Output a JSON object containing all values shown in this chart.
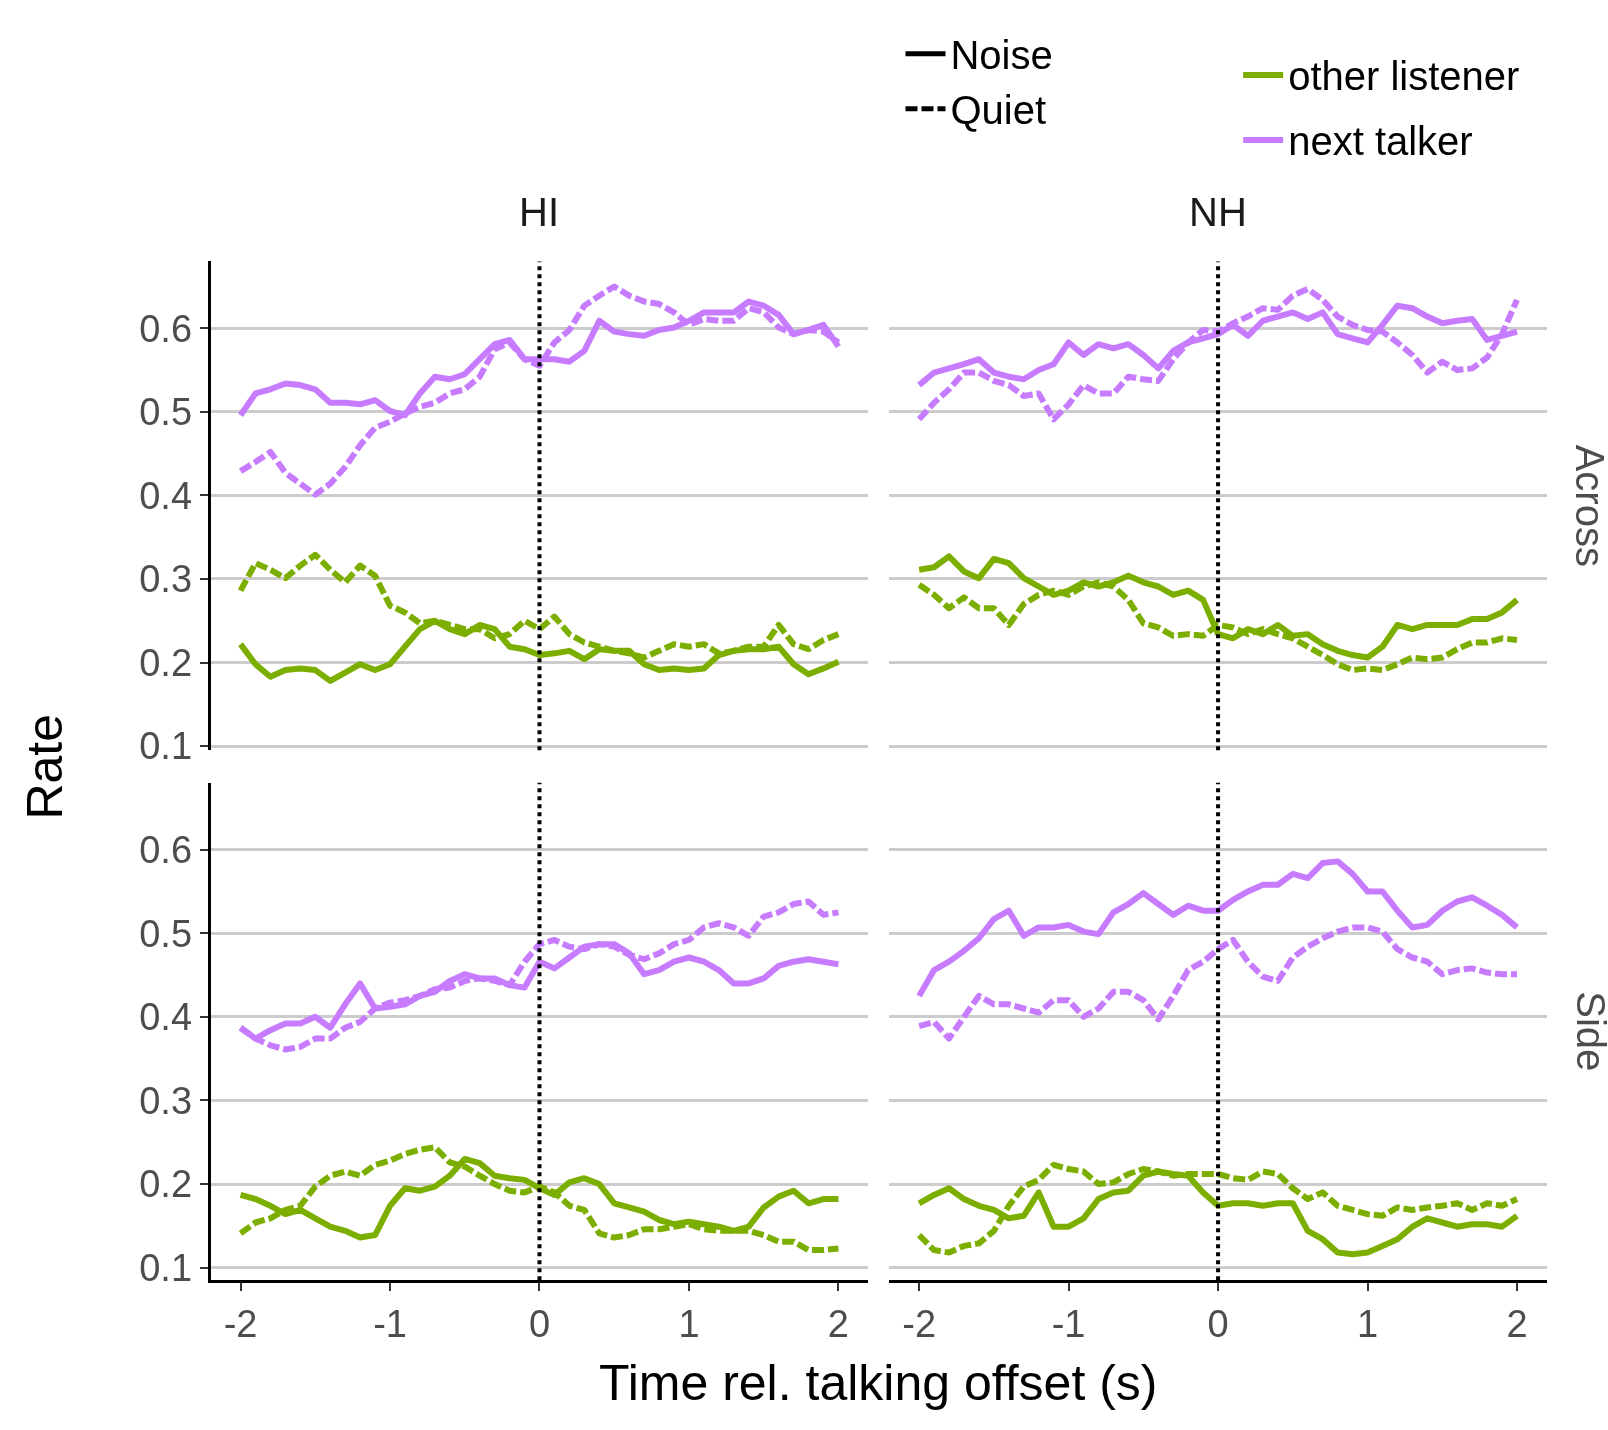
{
  "chart_data": [
    {
      "type": "line",
      "title": "HI",
      "ylabel": "Rate",
      "legend": "top",
      "annotations": [
        "Noise",
        "Quiet"
      ],
      "x": [
        -2,
        -1.9,
        -1.8,
        -1.7,
        -1.6,
        -1.5,
        -1.4,
        -1.3,
        -1.2,
        -1.1,
        -1,
        -0.9,
        -0.8,
        -0.7,
        -0.6,
        -0.5,
        -0.4,
        -0.3,
        -0.2,
        -0.1,
        0,
        0.1,
        0.2,
        0.3,
        0.4,
        0.5,
        0.6,
        0.7,
        0.8,
        0.9,
        1,
        1.1,
        1.2,
        1.3,
        1.4,
        1.5,
        1.6,
        1.7,
        1.8,
        1.9,
        2
      ],
      "xlim": [
        -2.2,
        2.2
      ],
      "xticks": [
        -2,
        -1,
        0,
        1,
        2
      ],
      "ylim": [
        0.095,
        0.68
      ],
      "yticks": [
        0.1,
        0.2,
        0.3,
        0.4,
        0.5,
        0.6
      ],
      "grid": "y",
      "tick_labels": "y",
      "ref_lines": [
        {
          "axis": "x",
          "value": 0,
          "line_style": "dotted",
          "color": "#000000"
        }
      ],
      "series": [
        {
          "name": "other listener",
          "color": "#7cae00",
          "line_style": "solid",
          "values": [
            0.222,
            0.198,
            0.183,
            0.191,
            0.193,
            0.191,
            0.178,
            0.188,
            0.198,
            0.191,
            0.198,
            0.219,
            0.24,
            0.25,
            0.24,
            0.234,
            0.245,
            0.24,
            0.219,
            0.216,
            0.209,
            0.211,
            0.214,
            0.204,
            0.216,
            0.214,
            0.214,
            0.198,
            0.191,
            0.193,
            0.191,
            0.193,
            0.209,
            0.214,
            0.216,
            0.216,
            0.219,
            0.198,
            0.186,
            0.193,
            0.201
          ]
        },
        {
          "color": "#7cae00",
          "line_style": "dashed",
          "values": [
            0.286,
            0.319,
            0.311,
            0.301,
            0.316,
            0.329,
            0.311,
            0.296,
            0.316,
            0.304,
            0.268,
            0.26,
            0.247,
            0.25,
            0.245,
            0.24,
            0.24,
            0.229,
            0.234,
            0.25,
            0.24,
            0.255,
            0.234,
            0.224,
            0.219,
            0.214,
            0.211,
            0.206,
            0.214,
            0.222,
            0.219,
            0.222,
            0.211,
            0.214,
            0.219,
            0.219,
            0.245,
            0.222,
            0.216,
            0.227,
            0.234
          ]
        },
        {
          "name": "next talker",
          "color": "#c77cff",
          "line_style": "solid",
          "values": [
            0.496,
            0.522,
            0.527,
            0.534,
            0.532,
            0.527,
            0.511,
            0.511,
            0.509,
            0.514,
            0.501,
            0.496,
            0.522,
            0.542,
            0.539,
            0.545,
            0.563,
            0.581,
            0.586,
            0.563,
            0.563,
            0.563,
            0.56,
            0.573,
            0.609,
            0.596,
            0.593,
            0.591,
            0.598,
            0.601,
            0.609,
            0.619,
            0.619,
            0.619,
            0.632,
            0.627,
            0.616,
            0.593,
            0.598,
            0.604,
            0.578
          ]
        },
        {
          "color": "#c77cff",
          "line_style": "dashed",
          "values": [
            0.429,
            0.44,
            0.452,
            0.427,
            0.414,
            0.401,
            0.414,
            0.434,
            0.46,
            0.481,
            0.488,
            0.498,
            0.506,
            0.511,
            0.522,
            0.527,
            0.542,
            0.575,
            0.583,
            0.563,
            0.555,
            0.583,
            0.598,
            0.627,
            0.639,
            0.65,
            0.639,
            0.632,
            0.629,
            0.619,
            0.604,
            0.611,
            0.609,
            0.609,
            0.624,
            0.619,
            0.601,
            0.593,
            0.598,
            0.596,
            0.583
          ]
        }
      ]
    },
    {
      "type": "line",
      "title": "NH",
      "annotations": [
        "Across"
      ],
      "x": [
        -2,
        -1.9,
        -1.8,
        -1.7,
        -1.6,
        -1.5,
        -1.4,
        -1.3,
        -1.2,
        -1.1,
        -1,
        -0.9,
        -0.8,
        -0.7,
        -0.6,
        -0.5,
        -0.4,
        -0.3,
        -0.2,
        -0.1,
        0,
        0.1,
        0.2,
        0.3,
        0.4,
        0.5,
        0.6,
        0.7,
        0.8,
        0.9,
        1,
        1.1,
        1.2,
        1.3,
        1.4,
        1.5,
        1.6,
        1.7,
        1.8,
        1.9,
        2
      ],
      "xlim": [
        -2.2,
        2.2
      ],
      "xticks": [
        -2,
        -1,
        0,
        1,
        2
      ],
      "ylim": [
        0.095,
        0.68
      ],
      "yticks": [
        0.1,
        0.2,
        0.3,
        0.4,
        0.5,
        0.6
      ],
      "grid": "y",
      "tick_labels": false,
      "ref_lines": [
        {
          "axis": "x",
          "value": 0,
          "line_style": "dotted",
          "color": "#000000"
        }
      ],
      "series": [
        {
          "color": "#7cae00",
          "line_style": "solid",
          "values": [
            0.311,
            0.314,
            0.327,
            0.309,
            0.301,
            0.324,
            0.319,
            0.301,
            0.291,
            0.281,
            0.286,
            0.296,
            0.291,
            0.296,
            0.304,
            0.296,
            0.291,
            0.281,
            0.286,
            0.275,
            0.234,
            0.229,
            0.24,
            0.234,
            0.245,
            0.232,
            0.234,
            0.222,
            0.214,
            0.209,
            0.206,
            0.219,
            0.245,
            0.24,
            0.245,
            0.245,
            0.245,
            0.252,
            0.252,
            0.26,
            0.275
          ]
        },
        {
          "color": "#7cae00",
          "line_style": "dashed",
          "values": [
            0.293,
            0.281,
            0.265,
            0.278,
            0.265,
            0.265,
            0.245,
            0.27,
            0.281,
            0.286,
            0.281,
            0.291,
            0.296,
            0.291,
            0.275,
            0.247,
            0.242,
            0.232,
            0.234,
            0.232,
            0.245,
            0.242,
            0.234,
            0.24,
            0.234,
            0.229,
            0.219,
            0.209,
            0.198,
            0.191,
            0.193,
            0.191,
            0.198,
            0.206,
            0.204,
            0.206,
            0.216,
            0.224,
            0.224,
            0.229,
            0.227
          ]
        },
        {
          "color": "#c77cff",
          "line_style": "solid",
          "values": [
            0.532,
            0.547,
            0.552,
            0.557,
            0.563,
            0.547,
            0.542,
            0.539,
            0.55,
            0.557,
            0.583,
            0.568,
            0.581,
            0.576,
            0.581,
            0.568,
            0.552,
            0.573,
            0.583,
            0.588,
            0.593,
            0.604,
            0.591,
            0.609,
            0.614,
            0.619,
            0.611,
            0.619,
            0.593,
            0.588,
            0.583,
            0.604,
            0.627,
            0.624,
            0.614,
            0.606,
            0.609,
            0.611,
            0.586,
            0.591,
            0.596
          ]
        },
        {
          "color": "#c77cff",
          "line_style": "dashed",
          "values": [
            0.491,
            0.511,
            0.527,
            0.547,
            0.547,
            0.537,
            0.532,
            0.519,
            0.522,
            0.491,
            0.509,
            0.532,
            0.522,
            0.522,
            0.542,
            0.539,
            0.537,
            0.563,
            0.583,
            0.598,
            0.596,
            0.606,
            0.614,
            0.624,
            0.622,
            0.639,
            0.647,
            0.634,
            0.614,
            0.604,
            0.598,
            0.596,
            0.583,
            0.568,
            0.547,
            0.56,
            0.55,
            0.552,
            0.565,
            0.593,
            0.634
          ]
        }
      ]
    },
    {
      "type": "line",
      "xlabel": "Time rel. talking offset (s)",
      "x": [
        -2,
        -1.9,
        -1.8,
        -1.7,
        -1.6,
        -1.5,
        -1.4,
        -1.3,
        -1.2,
        -1.1,
        -1,
        -0.9,
        -0.8,
        -0.7,
        -0.6,
        -0.5,
        -0.4,
        -0.3,
        -0.2,
        -0.1,
        0,
        0.1,
        0.2,
        0.3,
        0.4,
        0.5,
        0.6,
        0.7,
        0.8,
        0.9,
        1,
        1.1,
        1.2,
        1.3,
        1.4,
        1.5,
        1.6,
        1.7,
        1.8,
        1.9,
        2
      ],
      "xlim": [
        -2.2,
        2.2
      ],
      "xticks": [
        -2,
        -1,
        0,
        1,
        2
      ],
      "ylim": [
        0.085,
        0.68
      ],
      "yticks": [
        0.1,
        0.2,
        0.3,
        0.4,
        0.5,
        0.6
      ],
      "grid": "y",
      "ref_lines": [
        {
          "axis": "x",
          "value": 0,
          "line_style": "dotted",
          "color": "#000000"
        }
      ],
      "series": [
        {
          "color": "#7cae00",
          "line_style": "solid",
          "values": [
            0.187,
            0.182,
            0.174,
            0.164,
            0.169,
            0.159,
            0.149,
            0.144,
            0.136,
            0.139,
            0.174,
            0.195,
            0.192,
            0.197,
            0.21,
            0.23,
            0.225,
            0.21,
            0.207,
            0.205,
            0.195,
            0.187,
            0.202,
            0.207,
            0.2,
            0.177,
            0.172,
            0.167,
            0.157,
            0.152,
            0.155,
            0.152,
            0.149,
            0.144,
            0.149,
            0.172,
            0.185,
            0.192,
            0.177,
            0.182,
            0.182
          ]
        },
        {
          "color": "#7cae00",
          "line_style": "dashed",
          "values": [
            0.141,
            0.154,
            0.159,
            0.169,
            0.174,
            0.197,
            0.21,
            0.215,
            0.21,
            0.223,
            0.228,
            0.236,
            0.241,
            0.244,
            0.226,
            0.221,
            0.21,
            0.2,
            0.192,
            0.19,
            0.197,
            0.19,
            0.174,
            0.169,
            0.141,
            0.136,
            0.139,
            0.146,
            0.146,
            0.149,
            0.152,
            0.146,
            0.144,
            0.144,
            0.144,
            0.139,
            0.131,
            0.131,
            0.121,
            0.121,
            0.123
          ]
        },
        {
          "color": "#c77cff",
          "line_style": "solid",
          "values": [
            0.387,
            0.374,
            0.384,
            0.392,
            0.392,
            0.4,
            0.387,
            0.415,
            0.44,
            0.41,
            0.412,
            0.415,
            0.425,
            0.43,
            0.443,
            0.451,
            0.446,
            0.446,
            0.438,
            0.435,
            0.466,
            0.458,
            0.471,
            0.484,
            0.487,
            0.487,
            0.476,
            0.451,
            0.456,
            0.466,
            0.471,
            0.466,
            0.456,
            0.44,
            0.44,
            0.446,
            0.461,
            0.466,
            0.469,
            0.466,
            0.463
          ]
        },
        {
          "color": "#c77cff",
          "line_style": "dashed",
          "values": [
            0.387,
            0.374,
            0.366,
            0.361,
            0.364,
            0.374,
            0.374,
            0.387,
            0.394,
            0.41,
            0.417,
            0.42,
            0.425,
            0.433,
            0.435,
            0.443,
            0.446,
            0.443,
            0.438,
            0.466,
            0.487,
            0.492,
            0.484,
            0.481,
            0.487,
            0.484,
            0.474,
            0.469,
            0.476,
            0.487,
            0.492,
            0.507,
            0.512,
            0.507,
            0.497,
            0.52,
            0.525,
            0.535,
            0.538,
            0.522,
            0.525
          ]
        }
      ]
    },
    {
      "type": "line",
      "annotations": [
        "Side"
      ],
      "x": [
        -2,
        -1.9,
        -1.8,
        -1.7,
        -1.6,
        -1.5,
        -1.4,
        -1.3,
        -1.2,
        -1.1,
        -1,
        -0.9,
        -0.8,
        -0.7,
        -0.6,
        -0.5,
        -0.4,
        -0.3,
        -0.2,
        -0.1,
        0,
        0.1,
        0.2,
        0.3,
        0.4,
        0.5,
        0.6,
        0.7,
        0.8,
        0.9,
        1,
        1.1,
        1.2,
        1.3,
        1.4,
        1.5,
        1.6,
        1.7,
        1.8,
        1.9,
        2
      ],
      "xlim": [
        -2.2,
        2.2
      ],
      "xticks": [
        -2,
        -1,
        0,
        1,
        2
      ],
      "ylim": [
        0.085,
        0.68
      ],
      "yticks": [
        0.1,
        0.2,
        0.3,
        0.4,
        0.5,
        0.6
      ],
      "grid": "y",
      "tick_labels": "x",
      "ref_lines": [
        {
          "axis": "x",
          "value": 0,
          "line_style": "dotted",
          "color": "#000000"
        }
      ],
      "series": [
        {
          "color": "#7cae00",
          "line_style": "solid",
          "values": [
            0.177,
            0.187,
            0.195,
            0.182,
            0.174,
            0.169,
            0.159,
            0.162,
            0.19,
            0.149,
            0.149,
            0.159,
            0.182,
            0.19,
            0.192,
            0.21,
            0.215,
            0.212,
            0.21,
            0.19,
            0.174,
            0.177,
            0.177,
            0.174,
            0.177,
            0.177,
            0.144,
            0.134,
            0.118,
            0.116,
            0.118,
            0.126,
            0.134,
            0.149,
            0.159,
            0.154,
            0.149,
            0.152,
            0.152,
            0.149,
            0.162
          ]
        },
        {
          "color": "#7cae00",
          "line_style": "dashed",
          "values": [
            0.139,
            0.121,
            0.118,
            0.126,
            0.129,
            0.144,
            0.174,
            0.197,
            0.205,
            0.223,
            0.218,
            0.215,
            0.2,
            0.202,
            0.212,
            0.218,
            0.215,
            0.21,
            0.212,
            0.212,
            0.212,
            0.207,
            0.205,
            0.215,
            0.212,
            0.195,
            0.182,
            0.19,
            0.174,
            0.169,
            0.164,
            0.162,
            0.172,
            0.169,
            0.172,
            0.174,
            0.177,
            0.169,
            0.177,
            0.174,
            0.182
          ]
        },
        {
          "color": "#c77cff",
          "line_style": "solid",
          "values": [
            0.425,
            0.456,
            0.466,
            0.479,
            0.494,
            0.517,
            0.527,
            0.497,
            0.507,
            0.507,
            0.51,
            0.502,
            0.499,
            0.525,
            0.535,
            0.548,
            0.535,
            0.522,
            0.533,
            0.527,
            0.527,
            0.54,
            0.55,
            0.558,
            0.558,
            0.571,
            0.566,
            0.584,
            0.586,
            0.571,
            0.55,
            0.55,
            0.527,
            0.507,
            0.51,
            0.527,
            0.538,
            0.543,
            0.533,
            0.522,
            0.507
          ]
        },
        {
          "color": "#c77cff",
          "line_style": "dashed",
          "values": [
            0.389,
            0.394,
            0.374,
            0.4,
            0.425,
            0.415,
            0.415,
            0.41,
            0.405,
            0.42,
            0.42,
            0.4,
            0.41,
            0.43,
            0.43,
            0.42,
            0.397,
            0.425,
            0.456,
            0.466,
            0.481,
            0.492,
            0.466,
            0.448,
            0.443,
            0.471,
            0.484,
            0.494,
            0.502,
            0.507,
            0.507,
            0.502,
            0.481,
            0.471,
            0.466,
            0.451,
            0.456,
            0.458,
            0.453,
            0.451,
            0.451
          ]
        }
      ]
    }
  ]
}
